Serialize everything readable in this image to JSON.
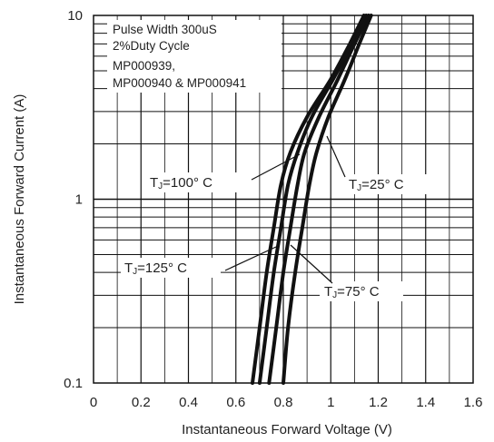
{
  "chart_data": {
    "type": "line",
    "xlabel": "Instantaneous Forward Voltage (V)",
    "ylabel": "Instantaneous Forward Current (A)",
    "xlim": [
      0,
      1.6
    ],
    "ylim": [
      0.1,
      10
    ],
    "yscale": "log",
    "grid": true,
    "x_ticks": [
      "0",
      "0.2",
      "0.4",
      "0.6",
      "0.8",
      "1",
      "1.2",
      "1.4",
      "1.6"
    ],
    "y_ticks": [
      "0.1",
      "1",
      "10"
    ],
    "notes": [
      "Pulse Width 300uS",
      "2%Duty Cycle",
      "MP000939,",
      "MP000940 & MP000941"
    ],
    "series": [
      {
        "name": "TJ=125° C",
        "label_main": "T",
        "label_sub": "J",
        "label_rest": "=125° C",
        "x": [
          0.67,
          0.7,
          0.73,
          0.76,
          0.79,
          0.83,
          0.9,
          1.0,
          1.08,
          1.14
        ],
        "y": [
          0.1,
          0.2,
          0.4,
          0.7,
          1.2,
          1.8,
          2.8,
          4.5,
          7,
          10
        ]
      },
      {
        "name": "TJ=100° C",
        "label_main": "T",
        "label_sub": "J",
        "label_rest": "=100° C",
        "x": [
          0.7,
          0.73,
          0.76,
          0.79,
          0.82,
          0.86,
          0.92,
          1.01,
          1.09,
          1.15
        ],
        "y": [
          0.1,
          0.2,
          0.4,
          0.7,
          1.2,
          1.8,
          2.8,
          4.5,
          7,
          10
        ]
      },
      {
        "name": "TJ=75° C",
        "label_main": "T",
        "label_sub": "J",
        "label_rest": "=75° C",
        "x": [
          0.74,
          0.77,
          0.8,
          0.83,
          0.86,
          0.89,
          0.95,
          1.03,
          1.1,
          1.16
        ],
        "y": [
          0.1,
          0.2,
          0.4,
          0.7,
          1.2,
          1.8,
          2.8,
          4.5,
          7,
          10
        ]
      },
      {
        "name": "TJ=25° C",
        "label_main": "T",
        "label_sub": "J",
        "label_rest": "=25° C",
        "x": [
          0.8,
          0.82,
          0.85,
          0.88,
          0.91,
          0.94,
          0.99,
          1.06,
          1.12,
          1.17
        ],
        "y": [
          0.1,
          0.2,
          0.4,
          0.7,
          1.2,
          1.8,
          2.8,
          4.5,
          7,
          10
        ]
      }
    ]
  }
}
